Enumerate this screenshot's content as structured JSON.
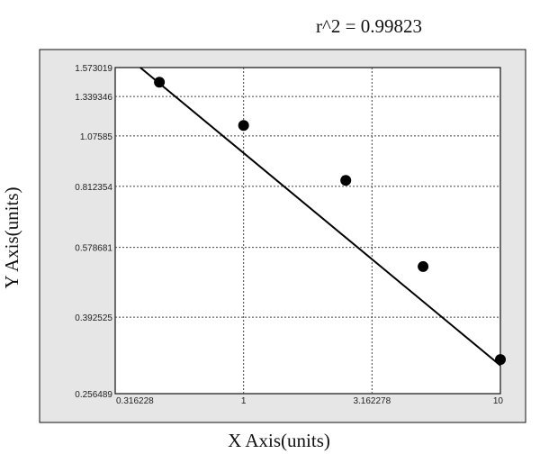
{
  "chart_data": {
    "type": "scatter",
    "title": "r^2 = 0.99823",
    "xlabel": "X Axis(units)",
    "ylabel": "Y Axis(units)",
    "x_scale": "log",
    "y_scale": "log",
    "xlim": [
      0.316228,
      10
    ],
    "ylim": [
      0.256489,
      1.573019
    ],
    "x_ticks": [
      {
        "value": 0.316228,
        "label": "0.316228"
      },
      {
        "value": 1,
        "label": "1"
      },
      {
        "value": 3.162278,
        "label": "3.162278"
      },
      {
        "value": 10,
        "label": "10"
      }
    ],
    "y_ticks": [
      {
        "value": 0.256489,
        "label": "0.256489"
      },
      {
        "value": 0.392525,
        "label": "0.392525"
      },
      {
        "value": 0.578681,
        "label": "0.578681"
      },
      {
        "value": 0.812354,
        "label": "0.812354"
      },
      {
        "value": 1.07585,
        "label": "1.07585"
      },
      {
        "value": 1.339346,
        "label": "1.339346"
      },
      {
        "value": 1.573019,
        "label": "1.573019"
      }
    ],
    "grid": true,
    "points": [
      {
        "x": 0.47,
        "y": 1.45
      },
      {
        "x": 1.0,
        "y": 1.14
      },
      {
        "x": 2.5,
        "y": 0.84
      },
      {
        "x": 5.0,
        "y": 0.52
      },
      {
        "x": 10.0,
        "y": 0.31
      }
    ],
    "fit_line": [
      {
        "x": 0.396,
        "y": 1.573019
      },
      {
        "x": 10.0,
        "y": 0.3
      }
    ],
    "colors": {
      "points": "#000000",
      "line": "#000000",
      "frame": "#e6e6e6"
    }
  }
}
